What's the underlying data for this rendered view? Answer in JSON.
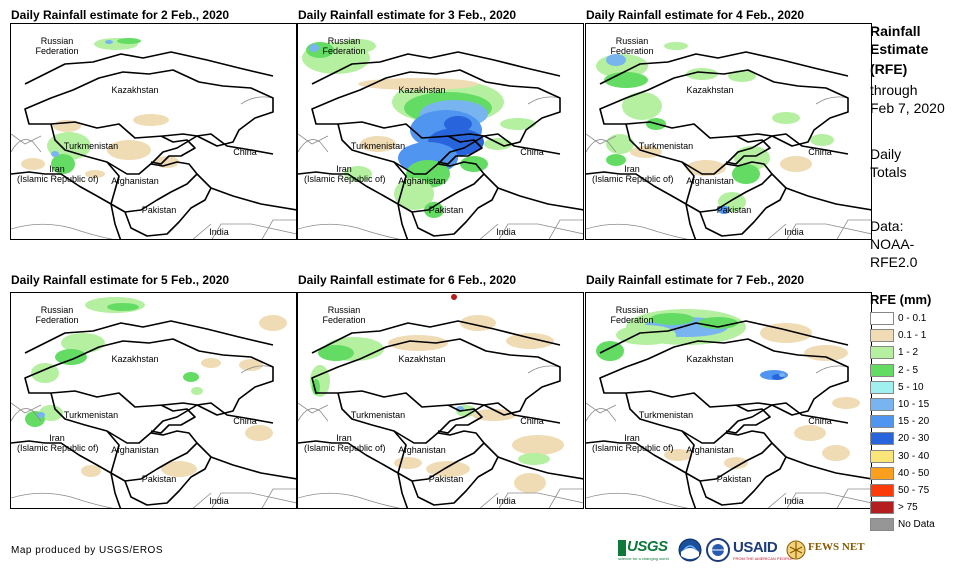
{
  "panels": [
    {
      "title": "Daily Rainfall estimate for 2 Feb., 2020"
    },
    {
      "title": "Daily Rainfall estimate for 3 Feb., 2020"
    },
    {
      "title": "Daily Rainfall estimate for 4 Feb., 2020"
    },
    {
      "title": "Daily Rainfall estimate for 5 Feb., 2020"
    },
    {
      "title": "Daily Rainfall estimate for 6 Feb., 2020"
    },
    {
      "title": "Daily Rainfall estimate for 7 Feb., 2020"
    }
  ],
  "map_labels": {
    "russia_1": "Russian",
    "russia_2": "Federation",
    "kazakhstan": "Kazakhstan",
    "turkmenistan": "Turkmenistan",
    "iran_1": "Iran",
    "iran_2": "(Islamic Republic of)",
    "afghanistan": "Afghanistan",
    "pakistan": "Pakistan",
    "china": "China",
    "india": "India"
  },
  "side": {
    "title_1": "Rainfall",
    "title_2": "Estimate",
    "title_3": "(RFE)",
    "through": "through",
    "date": "Feb 7, 2020",
    "daily": "Daily",
    "totals": "Totals",
    "data": "Data:",
    "noaa": "NOAA-",
    "rfe": "RFE2.0"
  },
  "legend": {
    "title": "RFE (mm)",
    "items": [
      {
        "label": "0 - 0.1",
        "color": "#ffffff"
      },
      {
        "label": "0.1 - 1",
        "color": "#f0dcb4"
      },
      {
        "label": "1 - 2",
        "color": "#b4f0a0"
      },
      {
        "label": "2 - 5",
        "color": "#64dc64"
      },
      {
        "label": "5 - 10",
        "color": "#a0f0f0"
      },
      {
        "label": "10 - 15",
        "color": "#78b4f0"
      },
      {
        "label": "15 - 20",
        "color": "#5096f0"
      },
      {
        "label": "20 - 30",
        "color": "#2864dc"
      },
      {
        "label": "30 - 40",
        "color": "#fae678"
      },
      {
        "label": "40 - 50",
        "color": "#faa01e"
      },
      {
        "label": "50 - 75",
        "color": "#fa3c0a"
      },
      {
        "label": "> 75",
        "color": "#b41e1e"
      },
      {
        "label": "No Data",
        "color": "#969696"
      }
    ]
  },
  "footer": "Map produced by USGS/EROS",
  "logos": {
    "usgs": "USGS",
    "usgs_tag": "science for a changing world",
    "usaid": "USAID",
    "usaid_tag": "FROM THE AMERICAN PEOPLE",
    "fews": "FEWS NET"
  }
}
